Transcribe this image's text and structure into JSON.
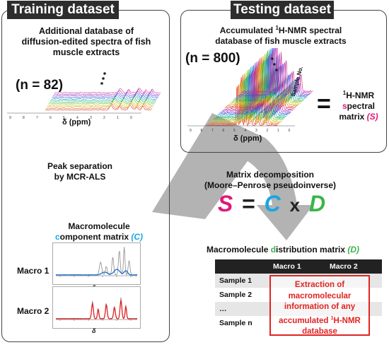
{
  "colors": {
    "magenta": "#e0187a",
    "cyan": "#1aa6e0",
    "green": "#3bb54a",
    "red": "#e02424",
    "dark": "#2d2d2d",
    "arrow_gray": "#b3b3b3"
  },
  "training": {
    "title": "Training dataset",
    "db_line1": "Additional database of",
    "db_line2": "diffusion-edited spectra of fish",
    "db_line3": "muscle extracts",
    "n_label": "(n = 82)",
    "ppm_label": "δ (ppm)",
    "x_ticks": [
      "9",
      "8",
      "7",
      "6",
      "5",
      "4",
      "3",
      "2",
      "1",
      "0"
    ],
    "peak_sep_line1": "Peak separation",
    "peak_sep_line2": "by MCR-ALS",
    "macro_title_line1": "Macromolecule",
    "macro_title_line2_c": "c",
    "macro_title_line2_rest": "omponent matrix ",
    "macro_title_c_paren": "(C)",
    "macro1_label": "Macro 1",
    "macro2_label": "Macro 2",
    "delta_small": "δ"
  },
  "testing": {
    "title": "Testing dataset",
    "accum_line1_pre": "Accumulated ",
    "accum_sup": "1",
    "accum_line1_post": "H-NMR spectral",
    "accum_line2": "database of fish muscle extracts",
    "n_label": "(n = 800)",
    "ppm_label": "δ (ppm)",
    "x_ticks": [
      "9",
      "8",
      "7",
      "6",
      "5",
      "4",
      "3",
      "2",
      "1",
      "0"
    ],
    "sample_no_label": "Sample No.",
    "equals": "=",
    "matrix_line1_sup": "1",
    "matrix_line1": "H-NMR",
    "matrix_line2_s": "s",
    "matrix_line2_rest": "pectral",
    "matrix_line3": "matrix ",
    "matrix_line3_s": "(S)"
  },
  "decomposition": {
    "line1": "Matrix decomposition",
    "line2": "(Moore–Penrose pseudoinverse)",
    "eq_S": "S",
    "eq_equals": "=",
    "eq_C": "C",
    "eq_x": "x",
    "eq_D": "D"
  },
  "distribution": {
    "title_pre": "Macromolecule ",
    "title_d": "d",
    "title_post": "istribution matrix ",
    "title_paren": "(D)",
    "headers": [
      "",
      "Macro 1",
      "Macro 2"
    ],
    "rows": [
      "Sample 1",
      "Sample 2",
      "…",
      "Sample n"
    ],
    "extract_line1": "Extraction of",
    "extract_line2": "macromolecular",
    "extract_line3": "information of any",
    "extract_line4_pre": "accumulated ",
    "extract_line4_sup": "1",
    "extract_line4_post": "H-NMR",
    "extract_line5": "database"
  }
}
